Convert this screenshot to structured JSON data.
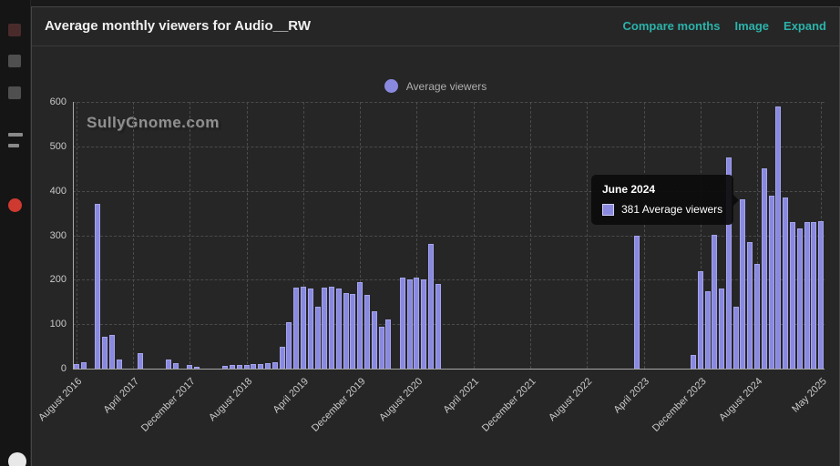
{
  "header": {
    "title": "Average monthly viewers for Audio__RW",
    "links": [
      "Compare months",
      "Image",
      "Expand"
    ]
  },
  "legend": {
    "label": "Average viewers"
  },
  "watermark": "SullyGnome.com",
  "tooltip": {
    "title": "June 2024",
    "value": 381,
    "label": "381 Average viewers",
    "month_index": 94
  },
  "colors": {
    "bar": "#8a89e0",
    "bar_border": "#a4a4ec",
    "accent_link": "#2bb3aa",
    "panel_bg": "#262626",
    "grid": "#4b4b4b",
    "axis_text": "#c9c9c9",
    "tooltip_bg": "#0c0c0c"
  },
  "left_rail": {
    "icons": [
      "rail-icon-top",
      "rail-icon-square-1",
      "rail-icon-square-2",
      "rail-icon-list",
      "rail-icon-record-red",
      "rail-icon-avatar-bottom"
    ]
  },
  "chart_data": {
    "type": "bar",
    "title": "Average monthly viewers for Audio__RW",
    "series_name": "Average viewers",
    "xlabel": "",
    "ylabel": "",
    "ylim": [
      0,
      600
    ],
    "ytick_step": 100,
    "grid": true,
    "legend_position": "top",
    "start_month": "2016-08",
    "end_month": "2025-05",
    "x_ticks": [
      {
        "label": "August 2016",
        "index": 0
      },
      {
        "label": "April 2017",
        "index": 8
      },
      {
        "label": "December 2017",
        "index": 16
      },
      {
        "label": "August 2018",
        "index": 24
      },
      {
        "label": "April 2019",
        "index": 32
      },
      {
        "label": "December 2019",
        "index": 40
      },
      {
        "label": "August 2020",
        "index": 48
      },
      {
        "label": "April 2021",
        "index": 56
      },
      {
        "label": "December 2021",
        "index": 64
      },
      {
        "label": "August 2022",
        "index": 72
      },
      {
        "label": "April 2023",
        "index": 80
      },
      {
        "label": "December 2023",
        "index": 88
      },
      {
        "label": "August 2024",
        "index": 96
      },
      {
        "label": "May 2025",
        "index": 105
      }
    ],
    "values": [
      10,
      14,
      0,
      370,
      72,
      75,
      20,
      0,
      0,
      35,
      0,
      0,
      0,
      20,
      13,
      0,
      8,
      5,
      0,
      0,
      0,
      7,
      8,
      8,
      9,
      10,
      10,
      12,
      15,
      50,
      105,
      183,
      185,
      180,
      140,
      182,
      185,
      180,
      170,
      168,
      195,
      165,
      130,
      95,
      110,
      0,
      205,
      200,
      205,
      200,
      280,
      190,
      0,
      0,
      0,
      0,
      0,
      0,
      0,
      0,
      0,
      0,
      0,
      0,
      0,
      0,
      0,
      0,
      0,
      0,
      0,
      0,
      0,
      0,
      0,
      0,
      0,
      0,
      0,
      298,
      0,
      0,
      0,
      0,
      0,
      0,
      0,
      30,
      220,
      175,
      300,
      180,
      475,
      140,
      381,
      285,
      235,
      450,
      390,
      590,
      385,
      330,
      315,
      330,
      330,
      332
    ]
  }
}
